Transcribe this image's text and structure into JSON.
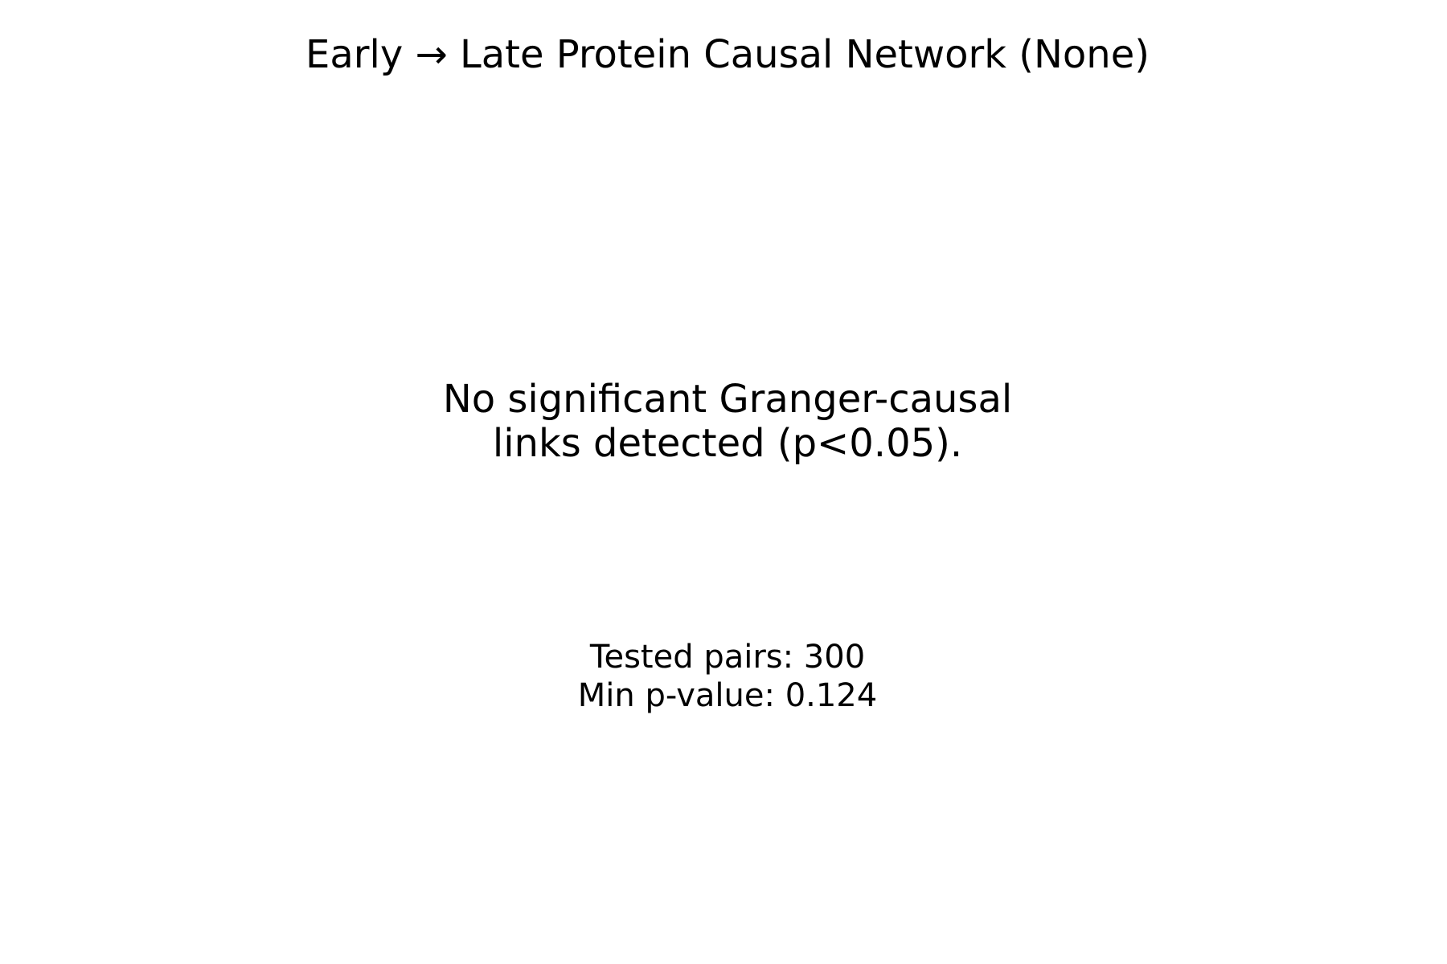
{
  "chart_data": {
    "type": "network",
    "title": "Early → Late Protein Causal Network (None)",
    "nodes": [],
    "edges": [],
    "message": {
      "line1": "No significant Granger-causal",
      "line2": "links detected (p<0.05)."
    },
    "stats": {
      "tested_pairs_label": "Tested pairs: 300",
      "min_pvalue_label": "Min p-value: 0.124",
      "tested_pairs": 300,
      "min_pvalue": 0.124,
      "significance_threshold": 0.05
    },
    "axes_visible": false,
    "grid": false
  }
}
